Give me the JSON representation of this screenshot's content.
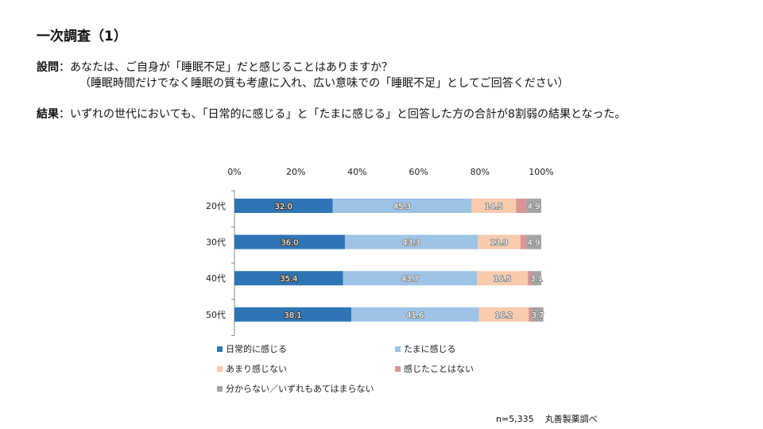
{
  "header": {
    "title": "一次調査（1）",
    "question_label": "設問",
    "question_text": "：あなたは、ご自身が「睡眠不足」だと感じることはありますか？",
    "question_sub": "（睡眠時間だけでなく睡眠の質も考慮に入れ、広い意味での「睡眠不足」としてご回答ください）",
    "result_label": "結果",
    "result_text": "：いずれの世代においても、「日常的に感じる」と「たまに感じる」と回答した方の合計が8割弱の結果となった。"
  },
  "footer": {
    "sample": "n=5,335",
    "source": "丸善製薬調べ"
  },
  "chart_data": {
    "type": "bar",
    "orientation": "horizontal",
    "stacked": "percent",
    "categories": [
      "20代",
      "30代",
      "40代",
      "50代"
    ],
    "series": [
      {
        "name": "日常的に感じる",
        "color": "#2E75B6",
        "values": [
          32.0,
          36.0,
          35.4,
          38.1
        ]
      },
      {
        "name": "たまに感じる",
        "color": "#9DC3E6",
        "values": [
          45.3,
          43.3,
          43.7,
          41.6
        ]
      },
      {
        "name": "あまり感じない",
        "color": "#F8CBAD",
        "values": [
          14.5,
          13.9,
          16.5,
          16.2
        ]
      },
      {
        "name": "感じたことはない",
        "color": "#D99694",
        "values": [
          3.3,
          1.9,
          1.3,
          1.1
        ]
      },
      {
        "name": "分からない／いずれもあてはまらない",
        "color": "#A5A5A5",
        "values": [
          4.9,
          4.9,
          3.1,
          3.7
        ]
      }
    ],
    "labels": [
      [
        "32.0",
        "45.3",
        "14.5",
        "",
        "4.9"
      ],
      [
        "36.0",
        "43.3",
        "13.9",
        "",
        "4.9"
      ],
      [
        "35.4",
        "43.7",
        "16.5",
        "",
        "3.1"
      ],
      [
        "38.1",
        "41.6",
        "16.2",
        "",
        "3.7"
      ]
    ],
    "xlim": [
      0,
      100
    ],
    "xticks": [
      "0%",
      "20%",
      "40%",
      "60%",
      "80%",
      "100%"
    ],
    "legend_position": "bottom",
    "grid": false
  }
}
